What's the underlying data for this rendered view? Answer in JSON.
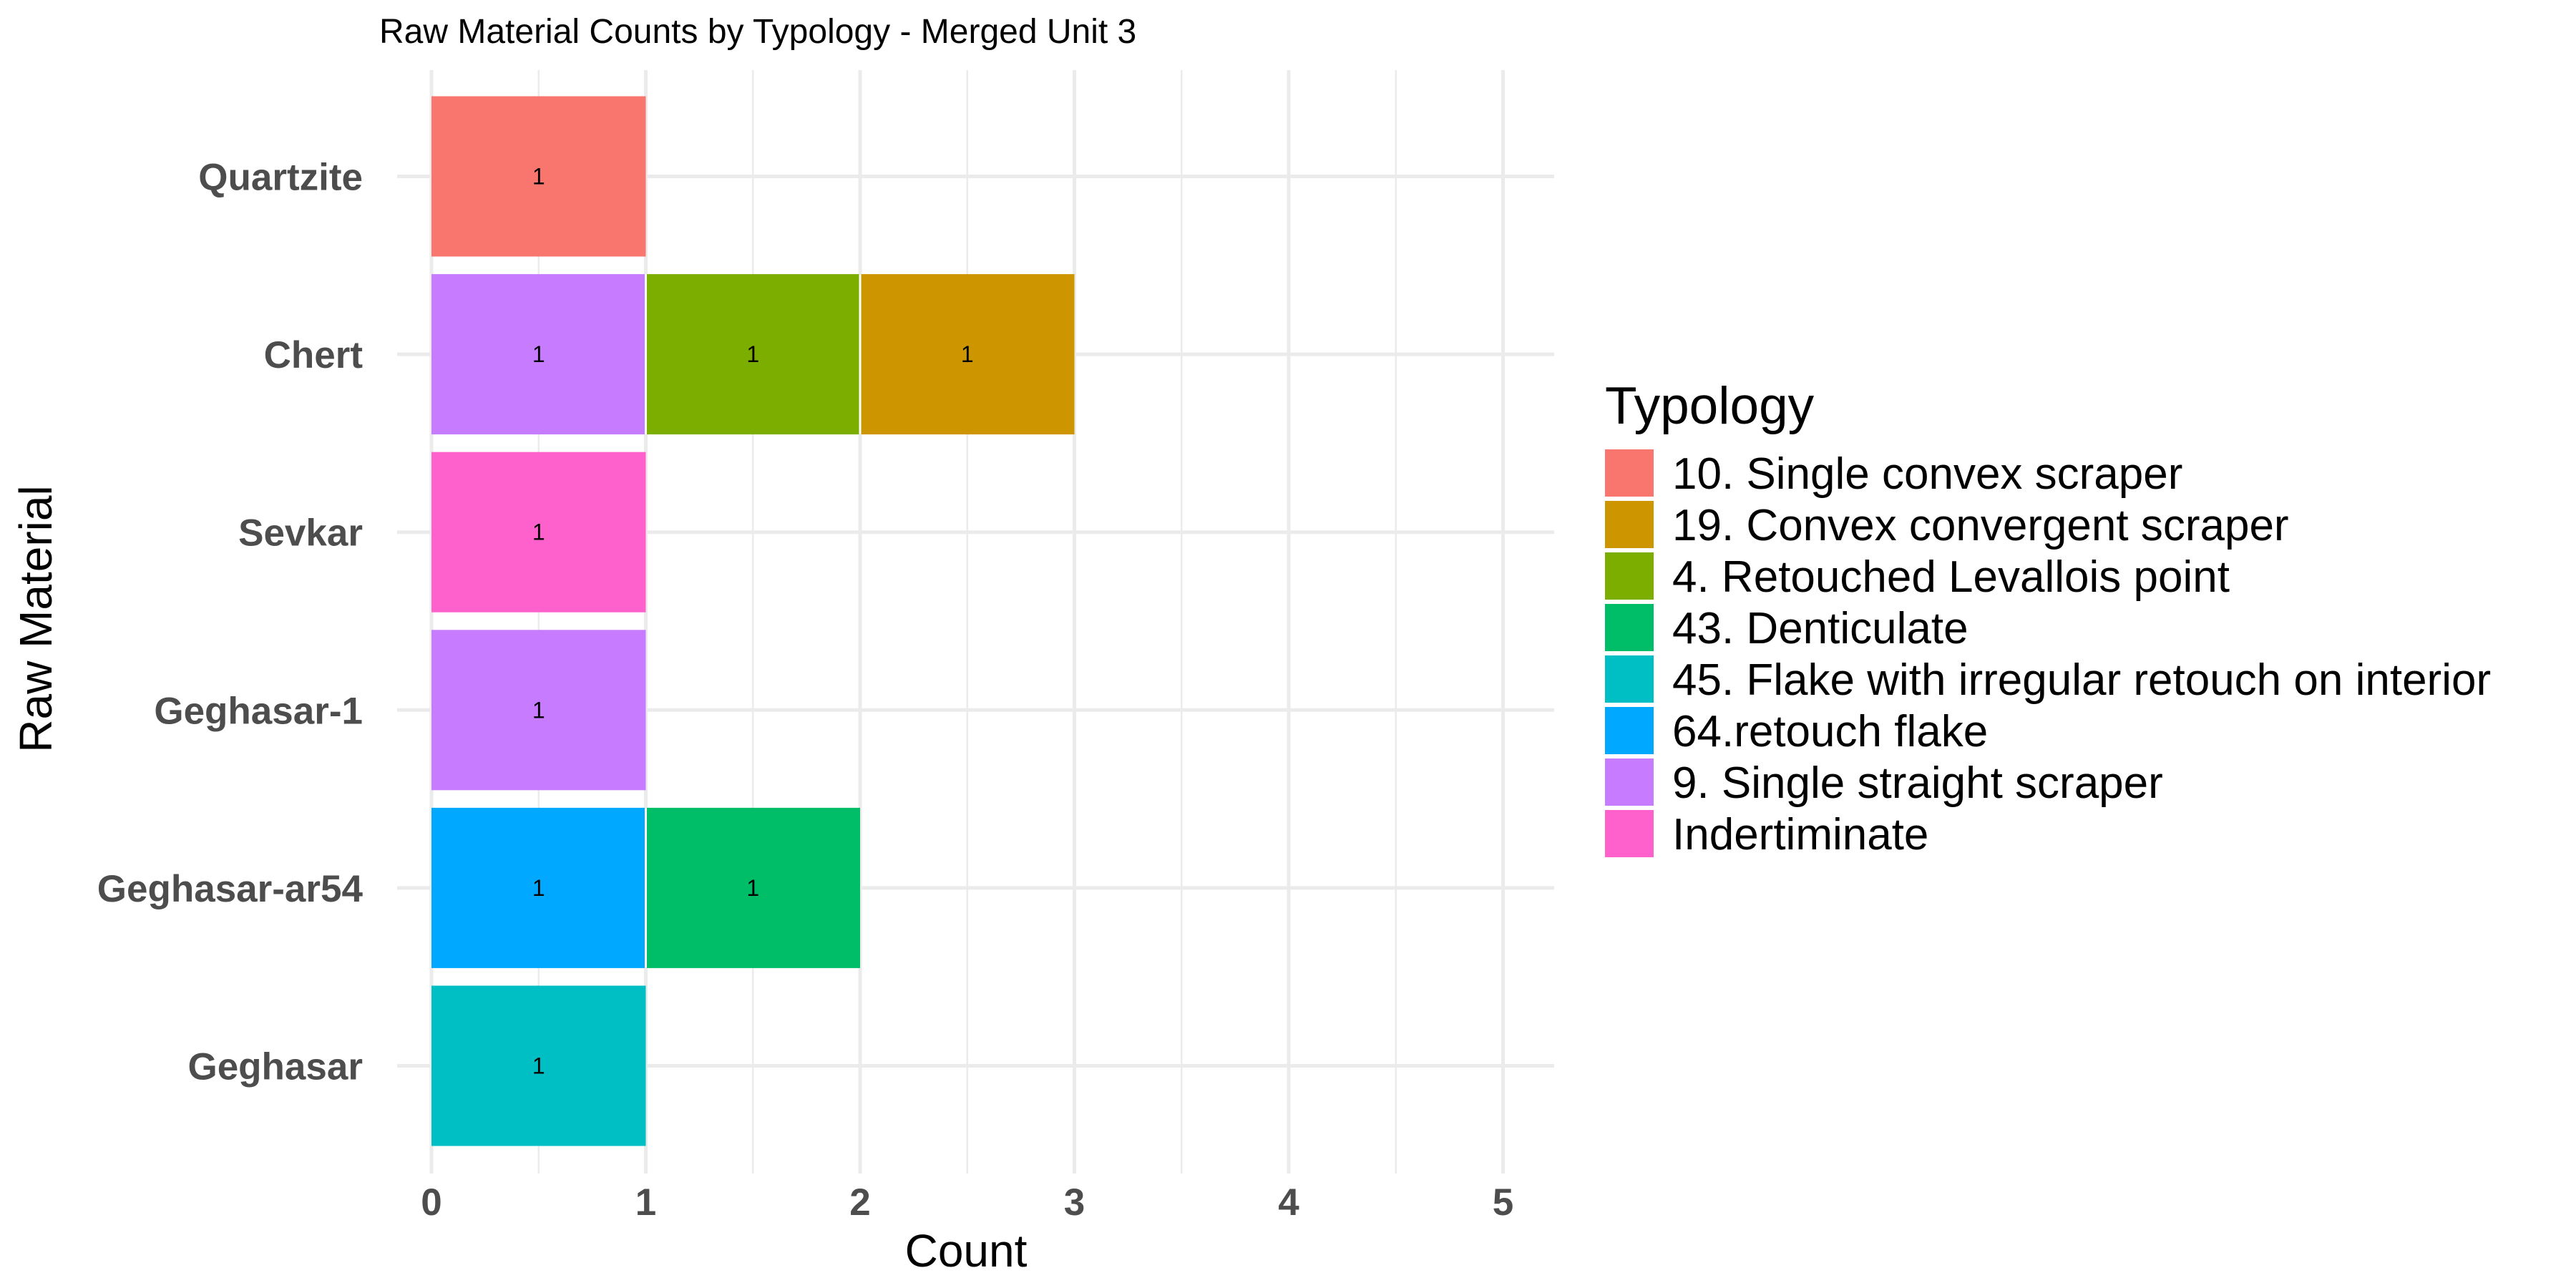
{
  "chart_data": {
    "type": "bar",
    "orientation": "horizontal",
    "stacked": true,
    "title": "Raw Material Counts by Typology - Merged Unit 3",
    "xlabel": "Count",
    "ylabel": "Raw Material",
    "xlim": [
      0,
      5.25
    ],
    "x_ticks": [
      0,
      1,
      2,
      3,
      4,
      5
    ],
    "grid": true,
    "legend_position": "right",
    "categories": [
      "Quartzite",
      "Chert",
      "Sevkar",
      "Geghasar-1",
      "Geghasar-ar54",
      "Geghasar"
    ],
    "legend_title": "Typology",
    "series": [
      {
        "name": "10. Single convex scraper",
        "color": "#F8766D",
        "values": [
          1,
          0,
          0,
          0,
          0,
          0
        ]
      },
      {
        "name": "19. Convex convergent scraper",
        "color": "#CD9600",
        "values": [
          0,
          1,
          0,
          0,
          0,
          0
        ]
      },
      {
        "name": "4. Retouched Levallois point",
        "color": "#7CAE00",
        "values": [
          0,
          1,
          0,
          0,
          0,
          0
        ]
      },
      {
        "name": "43. Denticulate",
        "color": "#00BE67",
        "values": [
          0,
          0,
          0,
          0,
          1,
          0
        ]
      },
      {
        "name": "45. Flake with irregular retouch on interior",
        "color": "#00BFC4",
        "values": [
          0,
          0,
          0,
          0,
          0,
          1
        ]
      },
      {
        "name": "64.retouch flake",
        "color": "#00A9FF",
        "values": [
          0,
          0,
          0,
          0,
          1,
          0
        ]
      },
      {
        "name": "9. Single straight scraper",
        "color": "#C77CFF",
        "values": [
          0,
          1,
          0,
          1,
          0,
          0
        ]
      },
      {
        "name": "Indertiminate",
        "color": "#FF61CC",
        "values": [
          0,
          0,
          1,
          0,
          0,
          0
        ]
      }
    ],
    "stack_order": [
      {
        "category": "Quartzite",
        "series": [
          "10. Single convex scraper"
        ]
      },
      {
        "category": "Chert",
        "series": [
          "9. Single straight scraper",
          "4. Retouched Levallois point",
          "19. Convex convergent scraper"
        ]
      },
      {
        "category": "Sevkar",
        "series": [
          "Indertiminate"
        ]
      },
      {
        "category": "Geghasar-1",
        "series": [
          "9. Single straight scraper"
        ]
      },
      {
        "category": "Geghasar-ar54",
        "series": [
          "64.retouch flake",
          "43. Denticulate"
        ]
      },
      {
        "category": "Geghasar",
        "series": [
          "45. Flake with irregular retouch on interior"
        ]
      }
    ]
  }
}
